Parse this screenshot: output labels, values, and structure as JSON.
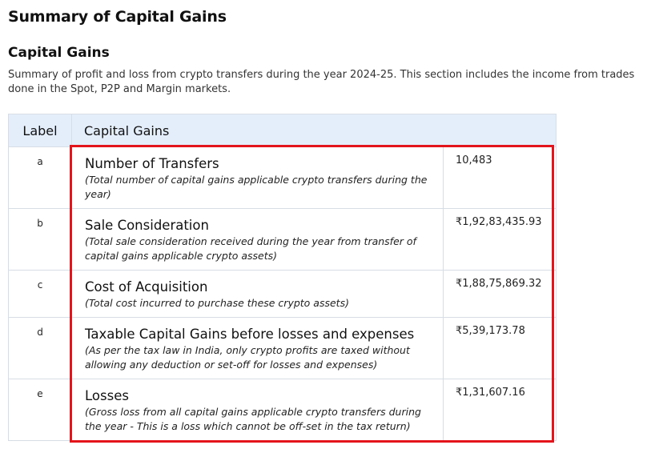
{
  "page": {
    "title": "Summary of Capital Gains"
  },
  "section": {
    "title": "Capital Gains",
    "description": "Summary of profit and loss from crypto transfers during the year 2024-25. This section includes the income from trades done in the Spot, P2P and Margin markets."
  },
  "table": {
    "headers": {
      "label": "Label",
      "capital_gains": "Capital Gains"
    },
    "rows": [
      {
        "label": "a",
        "title": "Number of Transfers",
        "note": "(Total number of capital gains applicable crypto transfers during the year)",
        "value": "10,483"
      },
      {
        "label": "b",
        "title": "Sale Consideration",
        "note": "(Total sale consideration received during the year from transfer of capital gains applicable crypto assets)",
        "value": "₹1,92,83,435.93"
      },
      {
        "label": "c",
        "title": "Cost of Acquisition",
        "note": "(Total cost incurred to purchase these crypto assets)",
        "value": "₹1,88,75,869.32"
      },
      {
        "label": "d",
        "title": "Taxable Capital Gains before losses and expenses",
        "note": "(As per the tax law in India, only crypto profits are taxed without allowing any deduction or set-off for losses and expenses)",
        "value": "₹5,39,173.78"
      },
      {
        "label": "e",
        "title": "Losses",
        "note": "(Gross loss from all capital gains applicable crypto transfers during the year - This is a loss which cannot be off-set in the tax return)",
        "value": "₹1,31,607.16"
      }
    ]
  },
  "colors": {
    "header_bg": "#e4eefb",
    "highlight": "#e3141b",
    "border": "#d7dde5"
  }
}
